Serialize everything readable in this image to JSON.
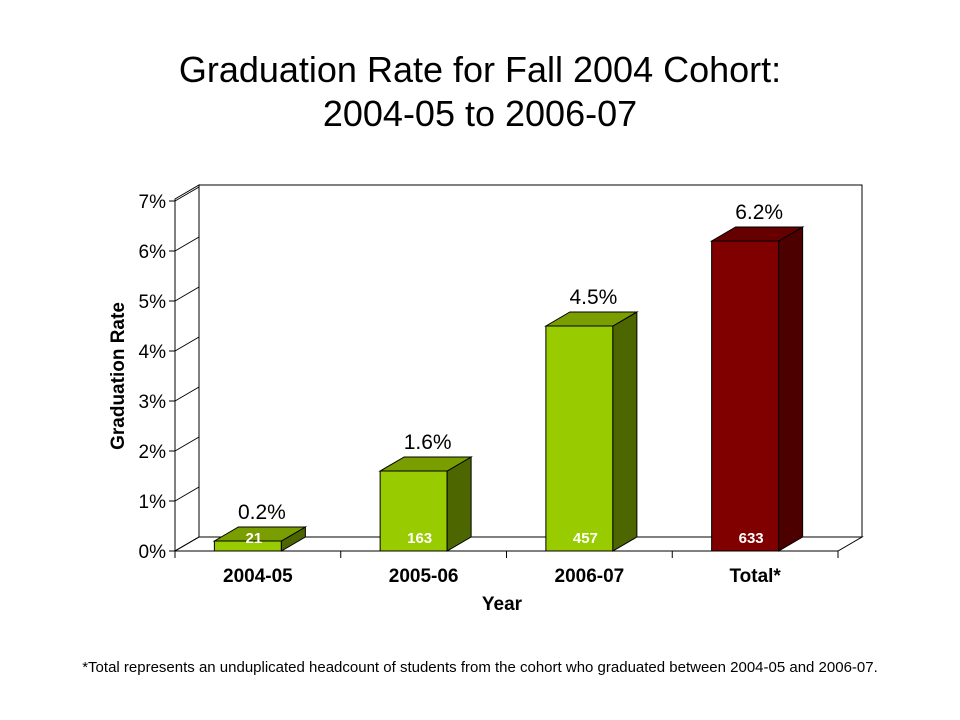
{
  "title_line1": "Graduation Rate for Fall 2004 Cohort:",
  "title_line2": "2004-05 to 2006-07",
  "footnote": "*Total represents an unduplicated headcount of students from the cohort who graduated between 2004-05 and 2006-07.",
  "chart_data": {
    "type": "bar",
    "title": "Graduation Rate for Fall 2004 Cohort: 2004-05 to 2006-07",
    "xlabel": "Year",
    "ylabel": "Graduation Rate",
    "categories": [
      "2004-05",
      "2005-06",
      "2006-07",
      "Total*"
    ],
    "values": [
      0.2,
      1.6,
      4.5,
      6.2
    ],
    "value_labels": [
      "0.2%",
      "1.6%",
      "4.5%",
      "6.2%"
    ],
    "counts": [
      "21",
      "163",
      "457",
      "633"
    ],
    "yticks": [
      "0%",
      "1%",
      "2%",
      "3%",
      "4%",
      "5%",
      "6%",
      "7%"
    ],
    "ylim": [
      0,
      7
    ],
    "grid": false,
    "bar_colors": [
      {
        "front": "#99cc00",
        "side": "#4d6600",
        "top": "#7a9e00"
      },
      {
        "front": "#99cc00",
        "side": "#4d6600",
        "top": "#7a9e00"
      },
      {
        "front": "#99cc00",
        "side": "#4d6600",
        "top": "#7a9e00"
      },
      {
        "front": "#800000",
        "side": "#4d0000",
        "top": "#660000"
      }
    ]
  }
}
